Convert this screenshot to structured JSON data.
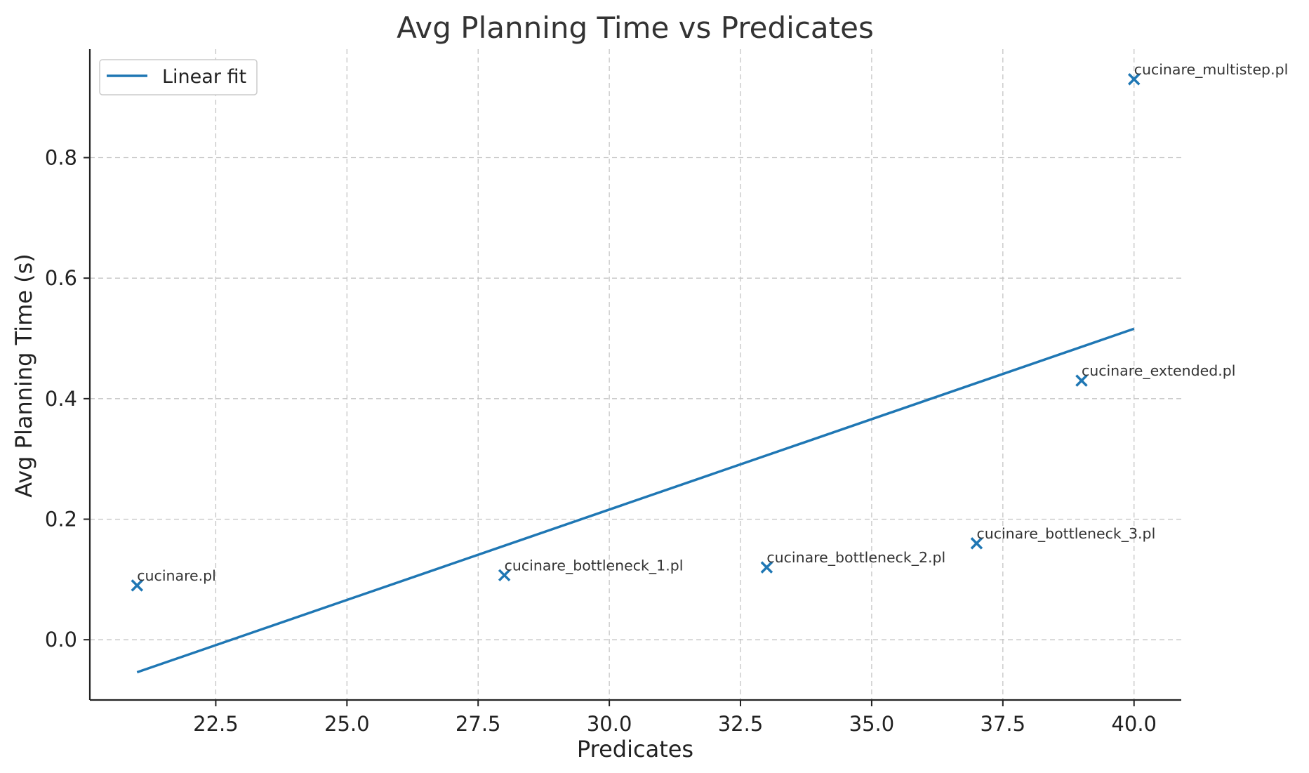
{
  "chart_data": {
    "type": "scatter",
    "title": "Avg Planning Time vs Predicates",
    "xlabel": "Predicates",
    "ylabel": "Avg Planning Time (s)",
    "xlim": [
      20.1,
      40.9
    ],
    "ylim": [
      -0.1,
      0.98
    ],
    "xticks": [
      22.5,
      25.0,
      27.5,
      30.0,
      32.5,
      35.0,
      37.5,
      40.0
    ],
    "xtick_labels": [
      "22.5",
      "25.0",
      "27.5",
      "30.0",
      "32.5",
      "35.0",
      "37.5",
      "40.0"
    ],
    "yticks": [
      0.0,
      0.2,
      0.4,
      0.6,
      0.8
    ],
    "ytick_labels": [
      "0.0",
      "0.2",
      "0.4",
      "0.6",
      "0.8"
    ],
    "grid": true,
    "legend": {
      "position": "top-left",
      "entries": [
        "Linear fit"
      ]
    },
    "color": "#1f77b4",
    "marker": "x",
    "points": [
      {
        "x": 21,
        "y": 0.09,
        "label": "cucinare.pl"
      },
      {
        "x": 28,
        "y": 0.107,
        "label": "cucinare_bottleneck_1.pl"
      },
      {
        "x": 33,
        "y": 0.12,
        "label": "cucinare_bottleneck_2.pl"
      },
      {
        "x": 37,
        "y": 0.16,
        "label": "cucinare_bottleneck_3.pl"
      },
      {
        "x": 39,
        "y": 0.43,
        "label": "cucinare_extended.pl"
      },
      {
        "x": 40,
        "y": 0.93,
        "label": "cucinare_multistep.pl"
      }
    ],
    "fit_line": {
      "name": "Linear fit",
      "x": [
        21,
        40
      ],
      "y": [
        -0.054,
        0.516
      ]
    }
  }
}
